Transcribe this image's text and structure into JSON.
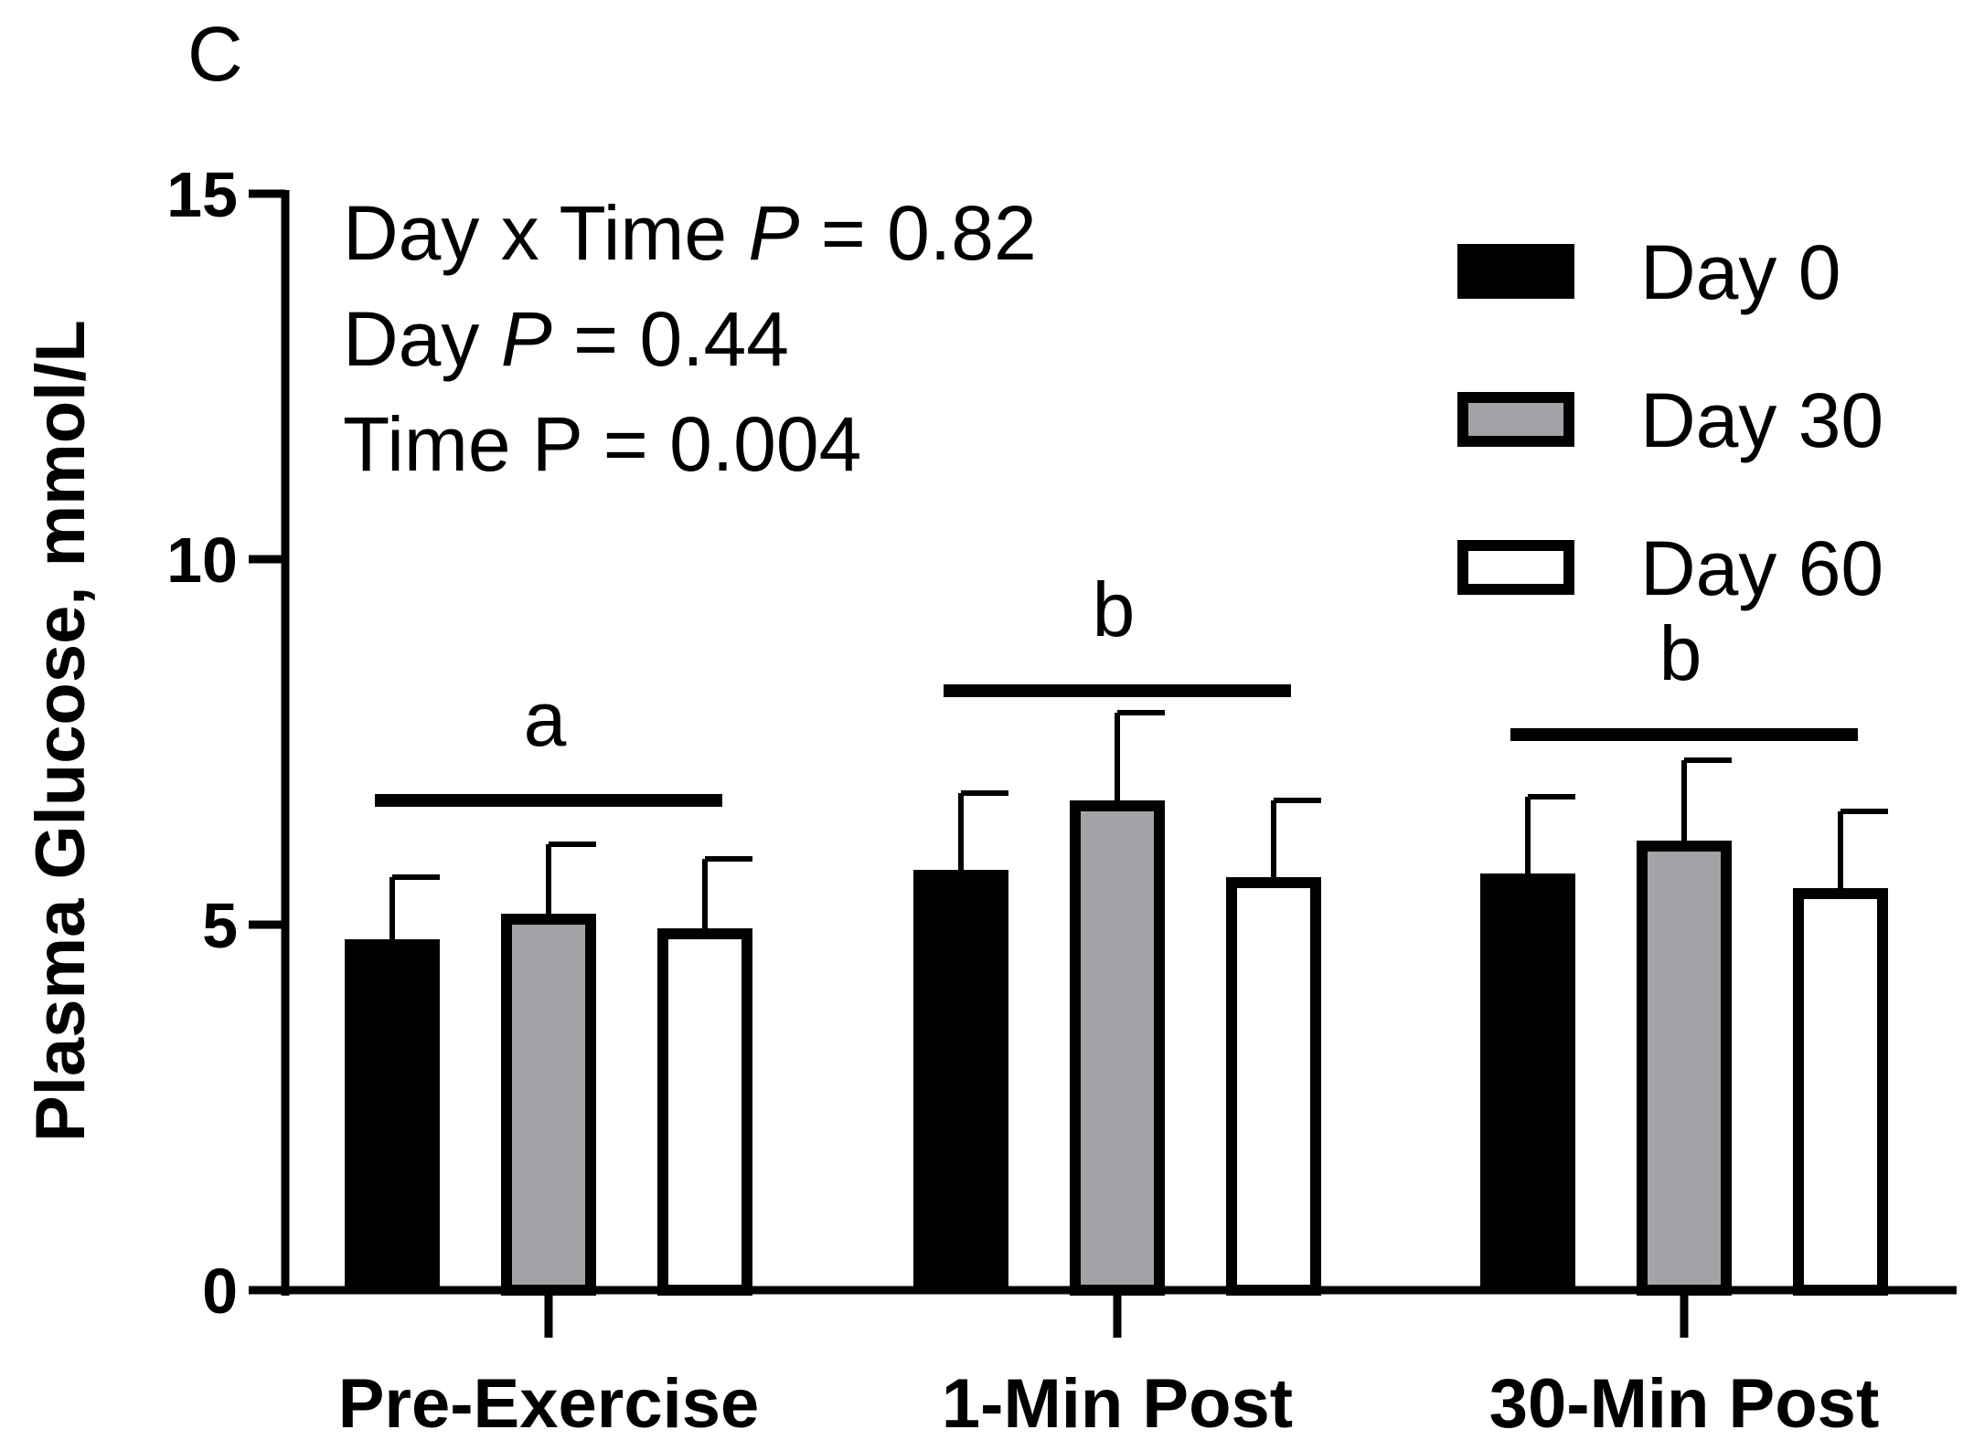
{
  "panel_label": "C",
  "annotations": {
    "interaction": {
      "prefix": "Day x  Time ",
      "p": "P",
      "value": " = 0.82"
    },
    "day": {
      "prefix": "Day ",
      "p": "P",
      "value": " = 0.44"
    },
    "time": {
      "text": "Time P = 0.004"
    }
  },
  "colors": {
    "day0": "#000000",
    "day30": "#a3a3a7",
    "day60": "#ffffff",
    "stroke": "#000000"
  },
  "chart_data": {
    "type": "bar",
    "title": "",
    "xlabel": "",
    "ylabel": "Plasma Glucose, mmol/L",
    "ylim": [
      0,
      15
    ],
    "yticks": [
      0,
      5,
      10,
      15
    ],
    "categories": [
      "Pre-Exercise",
      "1-Min Post",
      "30-Min Post"
    ],
    "series": [
      {
        "name": "Day 0",
        "values": [
          4.8,
          5.75,
          5.7
        ],
        "error": [
          0.85,
          1.05,
          1.05
        ]
      },
      {
        "name": "Day 30",
        "values": [
          5.15,
          6.7,
          6.15
        ],
        "error": [
          0.95,
          1.2,
          1.1
        ]
      },
      {
        "name": "Day 60",
        "values": [
          4.95,
          5.65,
          5.5
        ],
        "error": [
          0.95,
          1.05,
          1.05
        ]
      }
    ],
    "significance": [
      {
        "category": "Pre-Exercise",
        "letter": "a",
        "bar_level": 6.7
      },
      {
        "category": "1-Min Post",
        "letter": "b",
        "bar_level": 8.2
      },
      {
        "category": "30-Min Post",
        "letter": "b",
        "bar_level": 7.6
      }
    ],
    "legend": {
      "placement": "top-right",
      "entries": [
        "Day 0",
        "Day 30",
        "Day 60"
      ]
    }
  }
}
